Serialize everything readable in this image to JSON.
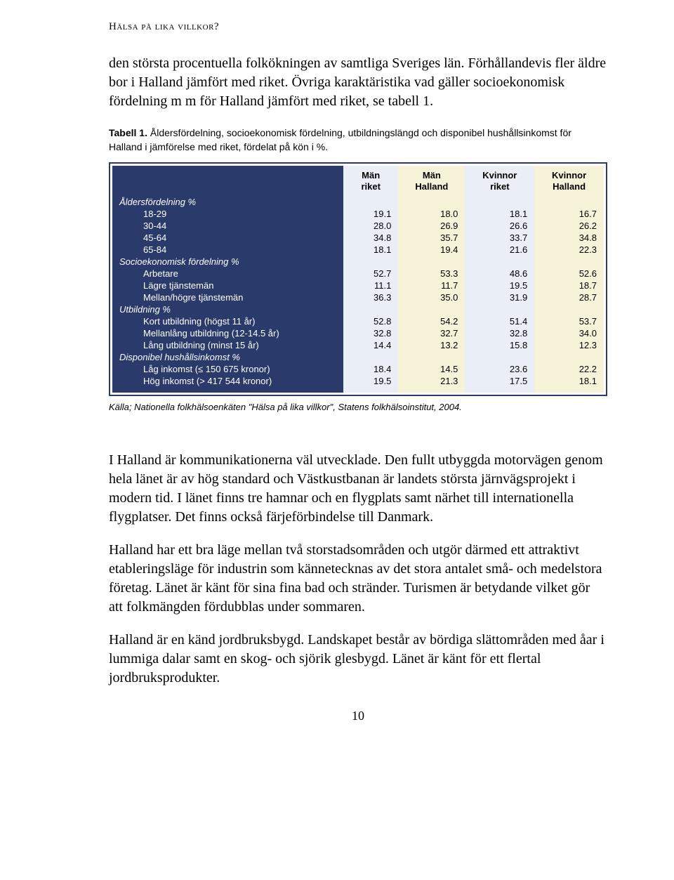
{
  "running_head": "Hälsa på lika villkor?",
  "intro_p1": "den största procentuella folkökningen av samtliga Sveriges län. Förhållandevis fler äldre bor i Halland jämfört med riket. Övriga karaktäristika vad gäller socioekonomisk fördelning m m för Halland jämfört med riket, se tabell 1.",
  "table_caption_lead": "Tabell 1.",
  "table_caption_rest": " Åldersfördelning, socioekonomisk fördelning, utbildningslängd och disponibel hushållsinkomst för Halland i jämförelse med riket, fördelat på kön i %.",
  "headers": {
    "c1a": "Män",
    "c1b": "riket",
    "c2a": "Män",
    "c2b": "Halland",
    "c3a": "Kvinnor",
    "c3b": "riket",
    "c4a": "Kvinnor",
    "c4b": "Halland"
  },
  "groups": [
    {
      "title": "Åldersfördelning %",
      "rows": [
        {
          "label": "18-29",
          "v": [
            "19.1",
            "18.0",
            "18.1",
            "16.7"
          ]
        },
        {
          "label": "30-44",
          "v": [
            "28.0",
            "26.9",
            "26.6",
            "26.2"
          ]
        },
        {
          "label": "45-64",
          "v": [
            "34.8",
            "35.7",
            "33.7",
            "34.8"
          ]
        },
        {
          "label": "65-84",
          "v": [
            "18.1",
            "19.4",
            "21.6",
            "22.3"
          ]
        }
      ]
    },
    {
      "title": "Socioekonomisk fördelning %",
      "rows": [
        {
          "label": "Arbetare",
          "v": [
            "52.7",
            "53.3",
            "48.6",
            "52.6"
          ]
        },
        {
          "label": "Lägre tjänstemän",
          "v": [
            "11.1",
            "11.7",
            "19.5",
            "18.7"
          ]
        },
        {
          "label": "Mellan/högre tjänstemän",
          "v": [
            "36.3",
            "35.0",
            "31.9",
            "28.7"
          ]
        }
      ]
    },
    {
      "title": "Utbildning %",
      "rows": [
        {
          "label": "Kort utbildning (högst 11 år)",
          "v": [
            "52.8",
            "54.2",
            "51.4",
            "53.7"
          ]
        },
        {
          "label": "Mellanlång utbildning (12-14.5 år)",
          "v": [
            "32.8",
            "32.7",
            "32.8",
            "34.0"
          ]
        },
        {
          "label": "Lång utbildning (minst 15 år)",
          "v": [
            "14.4",
            "13.2",
            "15.8",
            "12.3"
          ]
        }
      ]
    },
    {
      "title": "Disponibel hushållsinkomst %",
      "rows": [
        {
          "label": "Låg inkomst (≤ 150 675 kronor)",
          "v": [
            "18.4",
            "14.5",
            "23.6",
            "22.2"
          ]
        },
        {
          "label": "Hög inkomst (> 417 544 kronor)",
          "v": [
            "19.5",
            "21.3",
            "17.5",
            "18.1"
          ]
        }
      ]
    }
  ],
  "source": "Källa; Nationella folkhälsoenkäten \"Hälsa på lika villkor\", Statens folkhälsoinstitut, 2004.",
  "p2": "I Halland är kommunikationerna väl utvecklade. Den fullt utbyggda motorvägen genom hela länet är av hög standard och Västkustbanan är landets största järnvägsprojekt i modern tid. I länet finns tre hamnar och en flygplats samt närhet till internationella flygplatser. Det finns också färjeförbindelse till Danmark.",
  "p3": "Halland har ett bra läge mellan två storstadsområden och utgör därmed ett attraktivt etableringsläge för industrin som kännetecknas av det stora antalet små- och medelstora företag. Länet är känt för sina fina bad och stränder. Turismen är betydande vilket gör att folkmängden fördubblas under sommaren.",
  "p4": "Halland är en känd jordbruksbygd. Landskapet består av bördiga slättområden med åar i lummiga dalar samt en skog- och sjörik glesbygd. Länet är känt för ett flertal jordbruksprodukter.",
  "page_num": "10"
}
